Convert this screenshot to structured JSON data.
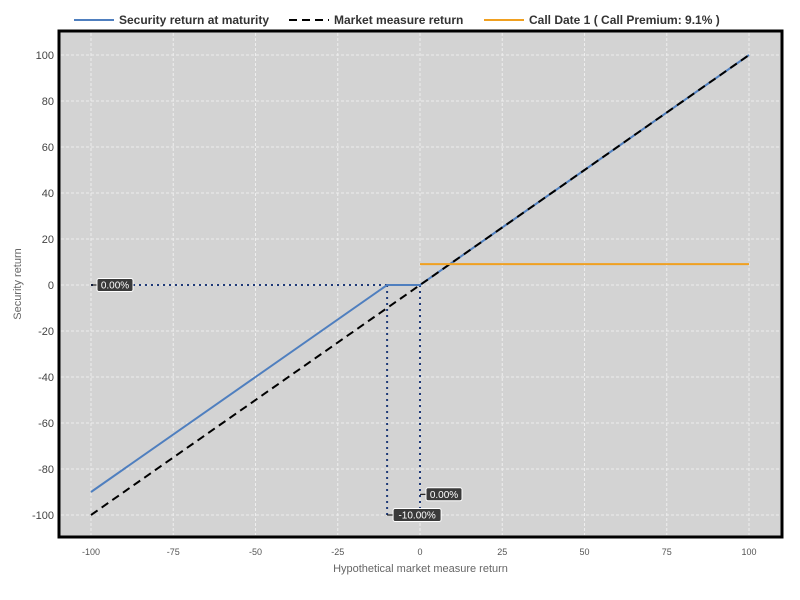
{
  "chart_data": {
    "type": "line",
    "title": "",
    "xlabel": "Hypothetical market measure return",
    "ylabel": "Security return",
    "xlim": [
      -105,
      110
    ],
    "ylim": [
      -110,
      110
    ],
    "x_ticks": [
      -100,
      -75,
      -50,
      -25,
      0,
      25,
      50,
      75,
      100
    ],
    "y_ticks": [
      -100,
      -80,
      -60,
      -40,
      -20,
      0,
      20,
      40,
      60,
      80,
      100
    ],
    "grid": true,
    "legend_position": "top",
    "plot_background": "#d3d3d3",
    "series": [
      {
        "name": "Security return at maturity",
        "color": "#4f7fbf",
        "style": "solid",
        "x": [
          -100,
          -10,
          0,
          100
        ],
        "y": [
          -90,
          0,
          0,
          100
        ]
      },
      {
        "name": "Market measure return",
        "color": "#000000",
        "style": "dashed",
        "x": [
          -100,
          100
        ],
        "y": [
          -100,
          100
        ]
      },
      {
        "name": "Call Date 1 ( Call Premium: 9.1% )",
        "color": "#f0a020",
        "style": "solid",
        "x": [
          0,
          100
        ],
        "y": [
          9.1,
          9.1
        ]
      }
    ],
    "reference_lines": [
      {
        "x": [
          -100,
          0
        ],
        "y": [
          0,
          0
        ],
        "color": "#1f3a78",
        "style": "dotted"
      },
      {
        "x": [
          -10,
          -10
        ],
        "y": [
          0,
          -100
        ],
        "color": "#1f3a78",
        "style": "dotted"
      },
      {
        "x": [
          0,
          0
        ],
        "y": [
          0,
          -100
        ],
        "color": "#1f3a78",
        "style": "dotted"
      }
    ],
    "annotations": [
      {
        "text": "0.00%",
        "x": -100,
        "y": 0,
        "anchor": "right"
      },
      {
        "text": "-10.00%",
        "x": -10,
        "y": -100,
        "anchor": "right"
      },
      {
        "text": "0.00%",
        "x": 0,
        "y": -91,
        "anchor": "right"
      }
    ]
  }
}
